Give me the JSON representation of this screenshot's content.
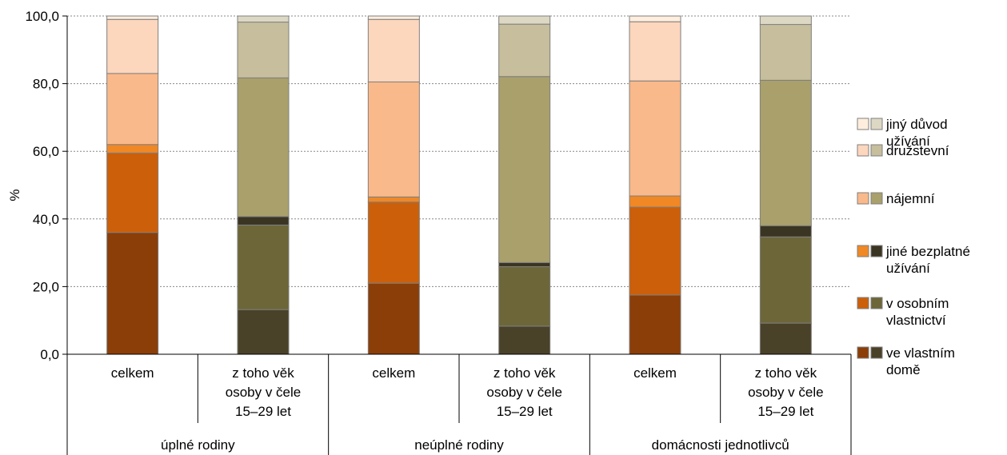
{
  "chart_data": {
    "type": "bar",
    "stacked": true,
    "ylabel": "%",
    "ylim": [
      0,
      100
    ],
    "yticks": [
      "0,0",
      "20,0",
      "40,0",
      "60,0",
      "80,0",
      "100,0"
    ],
    "grid": "horizontal dotted",
    "legend_position": "right",
    "groups": [
      {
        "label": "úplné rodiny",
        "categories": [
          [
            "celkem"
          ],
          [
            "z toho věk",
            "osoby v čele",
            "15–29 let"
          ]
        ]
      },
      {
        "label": "neúplné rodiny",
        "categories": [
          [
            "celkem"
          ],
          [
            "z toho věk",
            "osoby v čele",
            "15–29 let"
          ]
        ]
      },
      {
        "label": "domácnosti jednotlivců",
        "categories": [
          [
            "celkem"
          ],
          [
            "z toho věk",
            "osoby v čele",
            "15–29 let"
          ]
        ]
      }
    ],
    "series": [
      {
        "name": [
          "ve vlastním",
          "domě"
        ],
        "colors": [
          "#8B3E08",
          "#4A4129"
        ],
        "values": [
          36.0,
          13.2,
          21.0,
          8.3,
          17.5,
          9.2
        ]
      },
      {
        "name": [
          "v osobním",
          "vlastnictví"
        ],
        "colors": [
          "#CC5F0A",
          "#6D6638"
        ],
        "values": [
          23.5,
          25.0,
          24.0,
          17.6,
          26.0,
          25.5
        ]
      },
      {
        "name": [
          "jiné bezplatné",
          "užívání"
        ],
        "colors": [
          "#F08825",
          "#3A3422"
        ],
        "values": [
          2.5,
          2.5,
          1.5,
          1.2,
          3.3,
          3.3
        ]
      },
      {
        "name": [
          "nájemní"
        ],
        "colors": [
          "#FAB98A",
          "#A9A06B"
        ],
        "values": [
          21.0,
          41.0,
          34.0,
          55.0,
          34.0,
          43.0
        ]
      },
      {
        "name": [
          "družstevní"
        ],
        "colors": [
          "#FCD6BD",
          "#C6BE9C"
        ],
        "values": [
          16.0,
          16.5,
          18.5,
          15.5,
          17.5,
          16.5
        ]
      },
      {
        "name": [
          "jiný důvod",
          "užívání"
        ],
        "colors": [
          "#FFEEDD",
          "#DDD8C4"
        ],
        "values": [
          1.0,
          1.8,
          1.0,
          2.4,
          1.7,
          2.5
        ]
      }
    ]
  }
}
